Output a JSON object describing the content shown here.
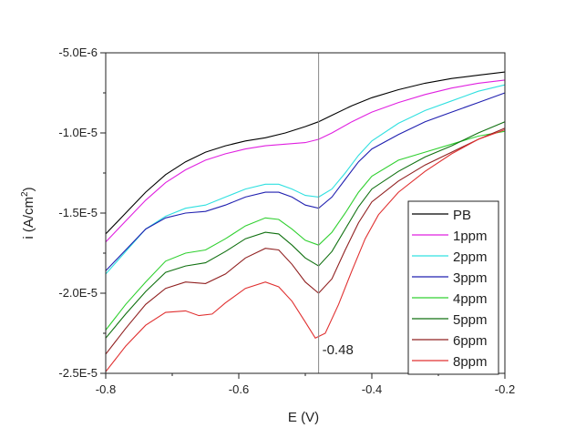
{
  "chart_data": {
    "type": "line",
    "title": "",
    "xlabel": "E (V)",
    "ylabel": "i (A/cm",
    "ylabel_sup": "2",
    "ylabel_suffix": ")",
    "xlim": [
      -0.8,
      -0.2
    ],
    "ylim": [
      -2.5e-05,
      -5e-06
    ],
    "x_ticks": [
      {
        "value": -0.8,
        "label": "-0.8"
      },
      {
        "value": -0.6,
        "label": "-0.6"
      },
      {
        "value": -0.4,
        "label": "-0.4"
      },
      {
        "value": -0.2,
        "label": "-0.2"
      }
    ],
    "y_ticks": [
      {
        "value": -5e-06,
        "label": "-5.0E-6"
      },
      {
        "value": -1e-05,
        "label": "-1.0E-5"
      },
      {
        "value": -1.5e-05,
        "label": "-1.5E-5"
      },
      {
        "value": -2e-05,
        "label": "-2.0E-5"
      },
      {
        "value": -2.5e-05,
        "label": "-2.5E-5"
      }
    ],
    "grid": false,
    "legend_position": "bottom-right",
    "annotation": {
      "x": -0.48,
      "label": "-0.48"
    },
    "series": [
      {
        "name": "PB",
        "color": "#000000",
        "points": [
          [
            -0.8,
            -1.63e-05
          ],
          [
            -0.77,
            -1.5e-05
          ],
          [
            -0.74,
            -1.37e-05
          ],
          [
            -0.71,
            -1.26e-05
          ],
          [
            -0.68,
            -1.18e-05
          ],
          [
            -0.65,
            -1.12e-05
          ],
          [
            -0.62,
            -1.08e-05
          ],
          [
            -0.59,
            -1.05e-05
          ],
          [
            -0.56,
            -1.03e-05
          ],
          [
            -0.53,
            -1e-05
          ],
          [
            -0.5,
            -9.6e-06
          ],
          [
            -0.48,
            -9.3e-06
          ],
          [
            -0.46,
            -8.9e-06
          ],
          [
            -0.43,
            -8.3e-06
          ],
          [
            -0.4,
            -7.8e-06
          ],
          [
            -0.36,
            -7.3e-06
          ],
          [
            -0.32,
            -6.9e-06
          ],
          [
            -0.28,
            -6.6e-06
          ],
          [
            -0.24,
            -6.4e-06
          ],
          [
            -0.2,
            -6.2e-06
          ]
        ]
      },
      {
        "name": "1ppm",
        "color": "#e020e0",
        "points": [
          [
            -0.8,
            -1.68e-05
          ],
          [
            -0.77,
            -1.55e-05
          ],
          [
            -0.74,
            -1.42e-05
          ],
          [
            -0.71,
            -1.31e-05
          ],
          [
            -0.68,
            -1.23e-05
          ],
          [
            -0.65,
            -1.17e-05
          ],
          [
            -0.62,
            -1.13e-05
          ],
          [
            -0.59,
            -1.1e-05
          ],
          [
            -0.56,
            -1.08e-05
          ],
          [
            -0.53,
            -1.07e-05
          ],
          [
            -0.5,
            -1.06e-05
          ],
          [
            -0.48,
            -1.04e-05
          ],
          [
            -0.46,
            -1e-05
          ],
          [
            -0.43,
            -9.3e-06
          ],
          [
            -0.4,
            -8.7e-06
          ],
          [
            -0.36,
            -8.1e-06
          ],
          [
            -0.32,
            -7.6e-06
          ],
          [
            -0.28,
            -7.2e-06
          ],
          [
            -0.24,
            -6.9e-06
          ],
          [
            -0.2,
            -6.7e-06
          ]
        ]
      },
      {
        "name": "2ppm",
        "color": "#30e0e0",
        "points": [
          [
            -0.8,
            -1.88e-05
          ],
          [
            -0.77,
            -1.74e-05
          ],
          [
            -0.74,
            -1.6e-05
          ],
          [
            -0.71,
            -1.52e-05
          ],
          [
            -0.68,
            -1.47e-05
          ],
          [
            -0.65,
            -1.45e-05
          ],
          [
            -0.62,
            -1.4e-05
          ],
          [
            -0.59,
            -1.35e-05
          ],
          [
            -0.56,
            -1.32e-05
          ],
          [
            -0.54,
            -1.32e-05
          ],
          [
            -0.52,
            -1.35e-05
          ],
          [
            -0.5,
            -1.39e-05
          ],
          [
            -0.48,
            -1.4e-05
          ],
          [
            -0.46,
            -1.35e-05
          ],
          [
            -0.44,
            -1.25e-05
          ],
          [
            -0.42,
            -1.14e-05
          ],
          [
            -0.4,
            -1.05e-05
          ],
          [
            -0.36,
            -9.4e-06
          ],
          [
            -0.32,
            -8.6e-06
          ],
          [
            -0.28,
            -8e-06
          ],
          [
            -0.24,
            -7.4e-06
          ],
          [
            -0.2,
            -7e-06
          ]
        ]
      },
      {
        "name": "3ppm",
        "color": "#2020b0",
        "points": [
          [
            -0.8,
            -1.86e-05
          ],
          [
            -0.77,
            -1.73e-05
          ],
          [
            -0.74,
            -1.6e-05
          ],
          [
            -0.71,
            -1.53e-05
          ],
          [
            -0.68,
            -1.5e-05
          ],
          [
            -0.65,
            -1.49e-05
          ],
          [
            -0.62,
            -1.45e-05
          ],
          [
            -0.59,
            -1.4e-05
          ],
          [
            -0.56,
            -1.37e-05
          ],
          [
            -0.54,
            -1.37e-05
          ],
          [
            -0.52,
            -1.4e-05
          ],
          [
            -0.5,
            -1.45e-05
          ],
          [
            -0.48,
            -1.47e-05
          ],
          [
            -0.46,
            -1.4e-05
          ],
          [
            -0.44,
            -1.29e-05
          ],
          [
            -0.42,
            -1.18e-05
          ],
          [
            -0.4,
            -1.1e-05
          ],
          [
            -0.36,
            -1.01e-05
          ],
          [
            -0.32,
            -9.3e-06
          ],
          [
            -0.28,
            -8.7e-06
          ],
          [
            -0.24,
            -8.1e-06
          ],
          [
            -0.2,
            -7.5e-06
          ]
        ]
      },
      {
        "name": "4ppm",
        "color": "#30d030",
        "points": [
          [
            -0.8,
            -2.23e-05
          ],
          [
            -0.77,
            -2.07e-05
          ],
          [
            -0.74,
            -1.93e-05
          ],
          [
            -0.71,
            -1.8e-05
          ],
          [
            -0.68,
            -1.75e-05
          ],
          [
            -0.65,
            -1.73e-05
          ],
          [
            -0.62,
            -1.66e-05
          ],
          [
            -0.59,
            -1.58e-05
          ],
          [
            -0.56,
            -1.53e-05
          ],
          [
            -0.54,
            -1.54e-05
          ],
          [
            -0.52,
            -1.6e-05
          ],
          [
            -0.5,
            -1.67e-05
          ],
          [
            -0.48,
            -1.7e-05
          ],
          [
            -0.46,
            -1.62e-05
          ],
          [
            -0.44,
            -1.5e-05
          ],
          [
            -0.42,
            -1.37e-05
          ],
          [
            -0.4,
            -1.27e-05
          ],
          [
            -0.36,
            -1.17e-05
          ],
          [
            -0.32,
            -1.12e-05
          ],
          [
            -0.28,
            -1.07e-05
          ],
          [
            -0.24,
            -1.02e-05
          ],
          [
            -0.2,
            -9.9e-06
          ]
        ]
      },
      {
        "name": "5ppm",
        "color": "#107010",
        "points": [
          [
            -0.8,
            -2.28e-05
          ],
          [
            -0.77,
            -2.13e-05
          ],
          [
            -0.74,
            -1.99e-05
          ],
          [
            -0.71,
            -1.87e-05
          ],
          [
            -0.68,
            -1.83e-05
          ],
          [
            -0.65,
            -1.81e-05
          ],
          [
            -0.62,
            -1.74e-05
          ],
          [
            -0.59,
            -1.66e-05
          ],
          [
            -0.56,
            -1.62e-05
          ],
          [
            -0.54,
            -1.63e-05
          ],
          [
            -0.52,
            -1.7e-05
          ],
          [
            -0.5,
            -1.78e-05
          ],
          [
            -0.48,
            -1.83e-05
          ],
          [
            -0.46,
            -1.74e-05
          ],
          [
            -0.44,
            -1.6e-05
          ],
          [
            -0.42,
            -1.46e-05
          ],
          [
            -0.4,
            -1.35e-05
          ],
          [
            -0.36,
            -1.24e-05
          ],
          [
            -0.32,
            -1.15e-05
          ],
          [
            -0.28,
            -1.08e-05
          ],
          [
            -0.24,
            -1e-05
          ],
          [
            -0.2,
            -9.3e-06
          ]
        ]
      },
      {
        "name": "6ppm",
        "color": "#902020",
        "points": [
          [
            -0.8,
            -2.38e-05
          ],
          [
            -0.77,
            -2.22e-05
          ],
          [
            -0.74,
            -2.07e-05
          ],
          [
            -0.71,
            -1.97e-05
          ],
          [
            -0.68,
            -1.93e-05
          ],
          [
            -0.65,
            -1.94e-05
          ],
          [
            -0.62,
            -1.88e-05
          ],
          [
            -0.59,
            -1.78e-05
          ],
          [
            -0.56,
            -1.72e-05
          ],
          [
            -0.54,
            -1.73e-05
          ],
          [
            -0.52,
            -1.82e-05
          ],
          [
            -0.5,
            -1.93e-05
          ],
          [
            -0.48,
            -2e-05
          ],
          [
            -0.46,
            -1.91e-05
          ],
          [
            -0.44,
            -1.73e-05
          ],
          [
            -0.42,
            -1.56e-05
          ],
          [
            -0.4,
            -1.43e-05
          ],
          [
            -0.36,
            -1.3e-05
          ],
          [
            -0.32,
            -1.2e-05
          ],
          [
            -0.28,
            -1.12e-05
          ],
          [
            -0.24,
            -1.04e-05
          ],
          [
            -0.2,
            -9.7e-06
          ]
        ]
      },
      {
        "name": "8ppm",
        "color": "#e03030",
        "points": [
          [
            -0.8,
            -2.49e-05
          ],
          [
            -0.77,
            -2.33e-05
          ],
          [
            -0.74,
            -2.2e-05
          ],
          [
            -0.71,
            -2.12e-05
          ],
          [
            -0.68,
            -2.11e-05
          ],
          [
            -0.66,
            -2.14e-05
          ],
          [
            -0.64,
            -2.13e-05
          ],
          [
            -0.62,
            -2.06e-05
          ],
          [
            -0.59,
            -1.97e-05
          ],
          [
            -0.56,
            -1.93e-05
          ],
          [
            -0.54,
            -1.96e-05
          ],
          [
            -0.52,
            -2.05e-05
          ],
          [
            -0.5,
            -2.18e-05
          ],
          [
            -0.485,
            -2.28e-05
          ],
          [
            -0.47,
            -2.25e-05
          ],
          [
            -0.45,
            -2.07e-05
          ],
          [
            -0.43,
            -1.86e-05
          ],
          [
            -0.41,
            -1.66e-05
          ],
          [
            -0.39,
            -1.51e-05
          ],
          [
            -0.36,
            -1.37e-05
          ],
          [
            -0.32,
            -1.24e-05
          ],
          [
            -0.28,
            -1.13e-05
          ],
          [
            -0.24,
            -1.04e-05
          ],
          [
            -0.2,
            -9.8e-06
          ]
        ]
      }
    ]
  }
}
